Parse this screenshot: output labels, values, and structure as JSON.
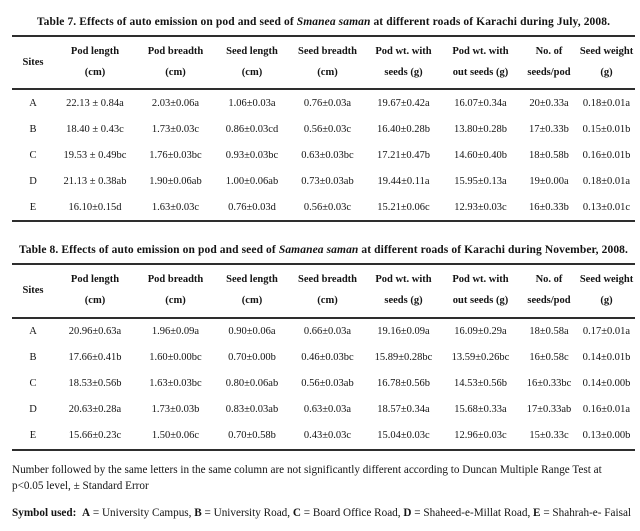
{
  "tables": [
    {
      "title_prefix": "Table 7.  Effects of auto emission on pod and seed of ",
      "title_species": "Smanea saman",
      "title_suffix": " at different roads of Karachi during July, 2008.",
      "columns": [
        {
          "line1": "Sites",
          "line2": ""
        },
        {
          "line1": "Pod length",
          "line2": "(cm)"
        },
        {
          "line1": "Pod breadth",
          "line2": "(cm)"
        },
        {
          "line1": "Seed length",
          "line2": "(cm)"
        },
        {
          "line1": "Seed breadth",
          "line2": "(cm)"
        },
        {
          "line1": "Pod wt. with",
          "line2": "seeds (g)"
        },
        {
          "line1": "Pod wt. with",
          "line2": "out seeds (g)"
        },
        {
          "line1": "No. of",
          "line2": "seeds/pod"
        },
        {
          "line1": "Seed weight",
          "line2": "(g)"
        }
      ],
      "rows": [
        {
          "site": "A",
          "values": [
            "22.13 ± 0.84a",
            "2.03±0.06a",
            "1.06±0.03a",
            "0.76±0.03a",
            "19.67±0.42a",
            "16.07±0.34a",
            "20±0.33a",
            "0.18±0.01a"
          ]
        },
        {
          "site": "B",
          "values": [
            "18.40 ± 0.43c",
            "1.73±0.03c",
            "0.86±0.03cd",
            "0.56±0.03c",
            "16.40±0.28b",
            "13.80±0.28b",
            "17±0.33b",
            "0.15±0.01b"
          ]
        },
        {
          "site": "C",
          "values": [
            "19.53 ± 0.49bc",
            "1.76±0.03bc",
            "0.93±0.03bc",
            "0.63±0.03bc",
            "17.21±0.47b",
            "14.60±0.40b",
            "18±0.58b",
            "0.16±0.01b"
          ]
        },
        {
          "site": "D",
          "values": [
            "21.13 ± 0.38ab",
            "1.90±0.06ab",
            "1.00±0.06ab",
            "0.73±0.03ab",
            "19.44±0.11a",
            "15.95±0.13a",
            "19±0.00a",
            "0.18±0.01a"
          ]
        },
        {
          "site": "E",
          "values": [
            "16.10±0.15d",
            "1.63±0.03c",
            "0.76±0.03d",
            "0.56±0.03c",
            "15.21±0.06c",
            "12.93±0.03c",
            "16±0.33b",
            "0.13±0.01c"
          ]
        }
      ]
    },
    {
      "title_prefix": "Table 8. Effects of auto emission on pod and seed of ",
      "title_species": "Samanea saman",
      "title_suffix": " at different roads of Karachi during November, 2008.",
      "columns": [
        {
          "line1": "Sites",
          "line2": ""
        },
        {
          "line1": "Pod length",
          "line2": "(cm)"
        },
        {
          "line1": "Pod breadth",
          "line2": "(cm)"
        },
        {
          "line1": "Seed length",
          "line2": "(cm)"
        },
        {
          "line1": "Seed breadth",
          "line2": "(cm)"
        },
        {
          "line1": "Pod wt. with",
          "line2": "seeds (g)"
        },
        {
          "line1": "Pod wt. with",
          "line2": "out seeds (g)"
        },
        {
          "line1": "No. of",
          "line2": "seeds/pod"
        },
        {
          "line1": "Seed weight",
          "line2": "(g)"
        }
      ],
      "rows": [
        {
          "site": "A",
          "values": [
            "20.96±0.63a",
            "1.96±0.09a",
            "0.90±0.06a",
            "0.66±0.03a",
            "19.16±0.09a",
            "16.09±0.29a",
            "18±0.58a",
            "0.17±0.01a"
          ]
        },
        {
          "site": "B",
          "values": [
            "17.66±0.41b",
            "1.60±0.00bc",
            "0.70±0.00b",
            "0.46±0.03bc",
            "15.89±0.28bc",
            "13.59±0.26bc",
            "16±0.58c",
            "0.14±0.01b"
          ]
        },
        {
          "site": "C",
          "values": [
            "18.53±0.56b",
            "1.63±0.03bc",
            "0.80±0.06ab",
            "0.56±0.03ab",
            "16.78±0.56b",
            "14.53±0.56b",
            "16±0.33bc",
            "0.14±0.00b"
          ]
        },
        {
          "site": "D",
          "values": [
            "20.63±0.28a",
            "1.73±0.03b",
            "0.83±0.03ab",
            "0.63±0.03a",
            "18.57±0.34a",
            "15.68±0.33a",
            "17±0.33ab",
            "0.16±0.01a"
          ]
        },
        {
          "site": "E",
          "values": [
            "15.66±0.23c",
            "1.50±0.06c",
            "0.70±0.58b",
            "0.43±0.03c",
            "15.04±0.03c",
            "12.96±0.03c",
            "15±0.33c",
            "0.13±0.00b"
          ]
        }
      ]
    }
  ],
  "footnote": "Number followed by the same letters in the same column are not significantly different according to Duncan Multiple Range Test at p<0.05 level,  ± Standard Error",
  "symbols": {
    "label": "Symbol used:",
    "equals": " = ",
    "separator": ", ",
    "items": [
      {
        "key": "A",
        "value": "University Campus"
      },
      {
        "key": "B",
        "value": "University Road"
      },
      {
        "key": "C",
        "value": "Board Office Road"
      },
      {
        "key": "D",
        "value": "Shaheed-e-Millat Road"
      },
      {
        "key": "E",
        "value": "Shahrah-e- Faisal"
      }
    ]
  }
}
